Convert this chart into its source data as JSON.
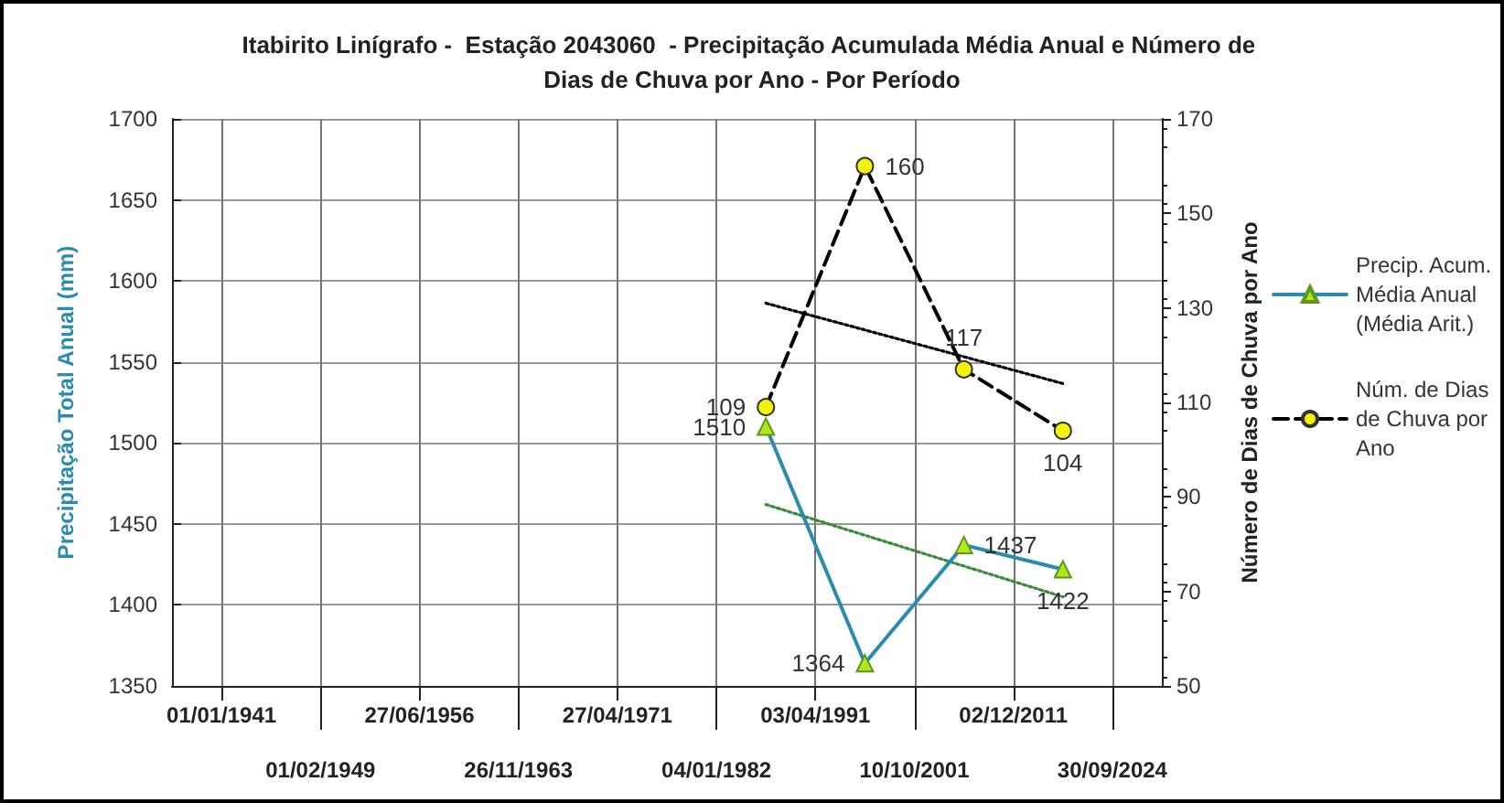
{
  "chart_data": {
    "type": "line",
    "title": "Itabirito Linígrafo -  Estação 2043060  - Precipitação Acumulada Média Anual e Número de Dias de Chuva por Ano - Por Período",
    "ylabel": "Precipitação Total Anual (mm)",
    "y2label": "Número de Dias de Chuva por Ano",
    "categories": [
      null,
      "01/01/1941",
      null,
      "01/02/1949",
      null,
      "27/06/1956",
      null,
      "26/11/1963",
      null,
      "27/04/1971",
      null,
      "04/01/1982",
      null,
      "03/04/1991",
      null,
      "10/10/2001",
      null,
      "02/12/2011",
      null,
      "30/09/2024",
      null
    ],
    "series": [
      {
        "name": "Precip. Acum. Média Anual (Média Arit.)",
        "color": "#2a8bb0",
        "marker": "triangle",
        "line_style": "solid",
        "values": [
          null,
          null,
          null,
          null,
          null,
          null,
          null,
          null,
          null,
          null,
          null,
          null,
          1510,
          null,
          1364,
          null,
          1437,
          null,
          1422,
          null,
          null
        ],
        "value_labels": [
          null,
          null,
          null,
          null,
          null,
          null,
          null,
          null,
          null,
          null,
          null,
          null,
          "1510",
          null,
          "1364",
          null,
          "1437",
          null,
          "1422",
          null,
          null
        ]
      },
      {
        "name": "Núm. de Dias de Chuva por Ano",
        "color": "#000000",
        "marker": "circle",
        "line_style": "dashed",
        "axis": "y2",
        "values": [
          null,
          null,
          null,
          null,
          null,
          null,
          null,
          null,
          null,
          null,
          null,
          null,
          109,
          null,
          160,
          null,
          117,
          null,
          104,
          null,
          null
        ],
        "value_labels": [
          null,
          null,
          null,
          null,
          null,
          null,
          null,
          null,
          null,
          null,
          null,
          null,
          "109",
          null,
          "160",
          null,
          "117",
          null,
          "104",
          null,
          null
        ]
      },
      {
        "type": "line",
        "color": "#3a8a3a",
        "marker": "none",
        "line_style": "dotted",
        "values": [
          null,
          null,
          null,
          null,
          null,
          null,
          null,
          null,
          null,
          null,
          null,
          null,
          1462,
          null,
          null,
          null,
          null,
          null,
          1405,
          null,
          null
        ]
      },
      {
        "type": "line",
        "color": "#000000",
        "marker": "none",
        "line_style": "dotted",
        "axis": "y2",
        "values": [
          null,
          null,
          null,
          null,
          null,
          null,
          null,
          null,
          null,
          null,
          null,
          null,
          131,
          null,
          null,
          null,
          null,
          null,
          114,
          null,
          null
        ]
      }
    ],
    "ylim": [
      1350,
      1700
    ],
    "yticks": [
      1350,
      1400,
      1450,
      1500,
      1550,
      1600,
      1650,
      1700
    ],
    "y2lim": [
      50,
      170
    ],
    "y2ticks": [
      50,
      70,
      90,
      110,
      130,
      150,
      170
    ],
    "grid": true,
    "legend": "right"
  }
}
